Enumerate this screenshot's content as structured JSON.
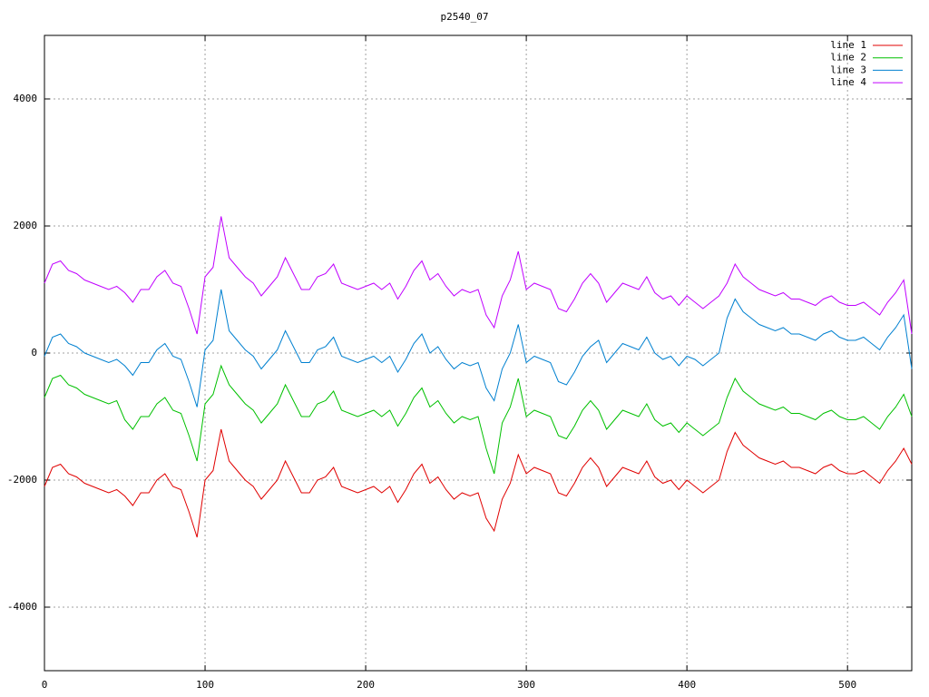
{
  "chart_data": {
    "type": "line",
    "title": "p2540_07",
    "x": [
      0,
      5,
      10,
      15,
      20,
      25,
      30,
      35,
      40,
      45,
      50,
      55,
      60,
      65,
      70,
      75,
      80,
      85,
      90,
      95,
      100,
      105,
      110,
      115,
      120,
      125,
      130,
      135,
      140,
      145,
      150,
      155,
      160,
      165,
      170,
      175,
      180,
      185,
      190,
      195,
      200,
      205,
      210,
      215,
      220,
      225,
      230,
      235,
      240,
      245,
      250,
      255,
      260,
      265,
      270,
      275,
      280,
      285,
      290,
      295,
      300,
      305,
      310,
      315,
      320,
      325,
      330,
      335,
      340,
      345,
      350,
      355,
      360,
      365,
      370,
      375,
      380,
      385,
      390,
      395,
      400,
      405,
      410,
      415,
      420,
      425,
      430,
      435,
      440,
      445,
      450,
      455,
      460,
      465,
      470,
      475,
      480,
      485,
      490,
      495,
      500,
      505,
      510,
      515,
      520,
      525,
      530,
      535,
      540
    ],
    "series": [
      {
        "name": "line 1",
        "color": "#e00000",
        "values": [
          -2100,
          -1800,
          -1750,
          -1900,
          -1950,
          -2050,
          -2100,
          -2150,
          -2200,
          -2150,
          -2250,
          -2400,
          -2200,
          -2200,
          -2000,
          -1900,
          -2100,
          -2150,
          -2500,
          -2900,
          -2000,
          -1850,
          -1200,
          -1700,
          -1850,
          -2000,
          -2100,
          -2300,
          -2150,
          -2000,
          -1700,
          -1950,
          -2200,
          -2200,
          -2000,
          -1950,
          -1800,
          -2100,
          -2150,
          -2200,
          -2150,
          -2100,
          -2200,
          -2100,
          -2350,
          -2150,
          -1900,
          -1750,
          -2050,
          -1950,
          -2150,
          -2300,
          -2200,
          -2250,
          -2200,
          -2600,
          -2800,
          -2300,
          -2050,
          -1600,
          -1900,
          -1800,
          -1850,
          -1900,
          -2200,
          -2250,
          -2050,
          -1800,
          -1650,
          -1800,
          -2100,
          -1950,
          -1800,
          -1850,
          -1900,
          -1700,
          -1950,
          -2050,
          -2000,
          -2150,
          -2000,
          -2100,
          -2200,
          -2100,
          -2000,
          -1550,
          -1250,
          -1450,
          -1550,
          -1650,
          -1700,
          -1750,
          -1700,
          -1800,
          -1800,
          -1850,
          -1900,
          -1800,
          -1750,
          -1850,
          -1900,
          -1900,
          -1850,
          -1950,
          -2050,
          -1850,
          -1700,
          -1500,
          -1750
        ]
      },
      {
        "name": "line 2",
        "color": "#00c000",
        "values": [
          -700,
          -400,
          -350,
          -500,
          -550,
          -650,
          -700,
          -750,
          -800,
          -750,
          -1050,
          -1200,
          -1000,
          -1000,
          -800,
          -700,
          -900,
          -950,
          -1300,
          -1700,
          -800,
          -650,
          -200,
          -500,
          -650,
          -800,
          -900,
          -1100,
          -950,
          -800,
          -500,
          -750,
          -1000,
          -1000,
          -800,
          -750,
          -600,
          -900,
          -950,
          -1000,
          -950,
          -900,
          -1000,
          -900,
          -1150,
          -950,
          -700,
          -550,
          -850,
          -750,
          -950,
          -1100,
          -1000,
          -1050,
          -1000,
          -1500,
          -1900,
          -1100,
          -850,
          -400,
          -1000,
          -900,
          -950,
          -1000,
          -1300,
          -1350,
          -1150,
          -900,
          -750,
          -900,
          -1200,
          -1050,
          -900,
          -950,
          -1000,
          -800,
          -1050,
          -1150,
          -1100,
          -1250,
          -1100,
          -1200,
          -1300,
          -1200,
          -1100,
          -700,
          -400,
          -600,
          -700,
          -800,
          -850,
          -900,
          -850,
          -950,
          -950,
          -1000,
          -1050,
          -950,
          -900,
          -1000,
          -1050,
          -1050,
          -1000,
          -1100,
          -1200,
          -1000,
          -850,
          -650,
          -1000
        ]
      },
      {
        "name": "line 3",
        "color": "#0080d0",
        "values": [
          -50,
          250,
          300,
          150,
          100,
          0,
          -50,
          -100,
          -150,
          -100,
          -200,
          -350,
          -150,
          -150,
          50,
          150,
          -50,
          -100,
          -450,
          -850,
          50,
          200,
          1000,
          350,
          200,
          50,
          -50,
          -250,
          -100,
          50,
          350,
          100,
          -150,
          -150,
          50,
          100,
          250,
          -50,
          -100,
          -150,
          -100,
          -50,
          -150,
          -50,
          -300,
          -100,
          150,
          300,
          0,
          100,
          -100,
          -250,
          -150,
          -200,
          -150,
          -550,
          -750,
          -250,
          0,
          450,
          -150,
          -50,
          -100,
          -150,
          -450,
          -500,
          -300,
          -50,
          100,
          200,
          -150,
          0,
          150,
          100,
          50,
          250,
          0,
          -100,
          -50,
          -200,
          -50,
          -100,
          -200,
          -100,
          0,
          550,
          850,
          650,
          550,
          450,
          400,
          350,
          400,
          300,
          300,
          250,
          200,
          300,
          350,
          250,
          200,
          200,
          250,
          150,
          50,
          250,
          400,
          600,
          -250
        ]
      },
      {
        "name": "line 4",
        "color": "#c000ff",
        "values": [
          1100,
          1400,
          1450,
          1300,
          1250,
          1150,
          1100,
          1050,
          1000,
          1050,
          950,
          800,
          1000,
          1000,
          1200,
          1300,
          1100,
          1050,
          700,
          300,
          1200,
          1350,
          2150,
          1500,
          1350,
          1200,
          1100,
          900,
          1050,
          1200,
          1500,
          1250,
          1000,
          1000,
          1200,
          1250,
          1400,
          1100,
          1050,
          1000,
          1050,
          1100,
          1000,
          1100,
          850,
          1050,
          1300,
          1450,
          1150,
          1250,
          1050,
          900,
          1000,
          950,
          1000,
          600,
          400,
          900,
          1150,
          1600,
          1000,
          1100,
          1050,
          1000,
          700,
          650,
          850,
          1100,
          1250,
          1100,
          800,
          950,
          1100,
          1050,
          1000,
          1200,
          950,
          850,
          900,
          750,
          900,
          800,
          700,
          800,
          900,
          1100,
          1400,
          1200,
          1100,
          1000,
          950,
          900,
          950,
          850,
          850,
          800,
          750,
          850,
          900,
          800,
          750,
          750,
          800,
          700,
          600,
          800,
          950,
          1150,
          300
        ]
      }
    ],
    "xlim": [
      0,
      540
    ],
    "xticks": [
      0,
      100,
      200,
      300,
      400,
      500
    ],
    "ylim": [
      -5000,
      5000
    ],
    "yticks": [
      -4000,
      -2000,
      0,
      2000,
      4000
    ],
    "grid": true,
    "legend": "top right"
  }
}
